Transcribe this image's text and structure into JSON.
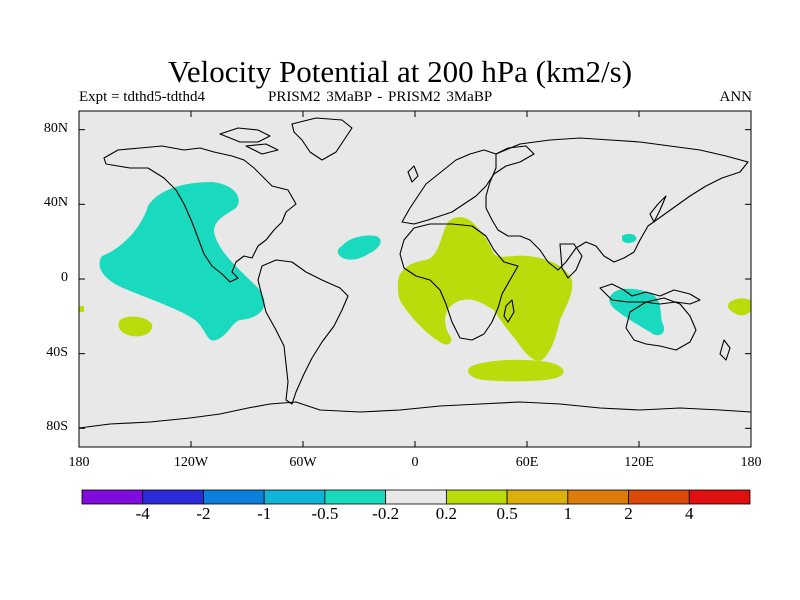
{
  "title": "Velocity Potential at 200 hPa (km2/s)",
  "expt": "Expt = tdthd5-tdthd4",
  "case": "PRISM2    3MaBP - PRISM2    3MaBP",
  "season": "ANN",
  "map": {
    "projection": "cylindrical equidistant",
    "lon_range": [
      -180,
      180
    ],
    "lat_range": [
      -90,
      90
    ],
    "ocean_background": "#e8e8e8",
    "coast_color": "#000000",
    "y_ticks": [
      {
        "label": "80N",
        "lat": 80
      },
      {
        "label": "40N",
        "lat": 40
      },
      {
        "label": "0",
        "lat": 0
      },
      {
        "label": "40S",
        "lat": -40
      },
      {
        "label": "80S",
        "lat": -80
      }
    ],
    "x_ticks": [
      {
        "label": "180",
        "lon": -180
      },
      {
        "label": "120W",
        "lon": -120
      },
      {
        "label": "60W",
        "lon": -60
      },
      {
        "label": "0",
        "lon": 0
      },
      {
        "label": "60E",
        "lon": 60
      },
      {
        "label": "120E",
        "lon": 120
      },
      {
        "label": "180",
        "lon": 180
      }
    ]
  },
  "colorbar": {
    "colors": [
      "#7f0bdc",
      "#2b2bd9",
      "#0a80dc",
      "#0fb4d6",
      "#19d9be",
      "#e8e8e8",
      "#b9dc0a",
      "#dcb00a",
      "#dc7d0a",
      "#dc4a0a",
      "#e01010"
    ],
    "labels": [
      "-4",
      "-2",
      "-1",
      "-0.5",
      "-0.2",
      "0.2",
      "0.5",
      "1",
      "2",
      "4"
    ]
  },
  "contours": {
    "negative_color": "#19d9be",
    "positive_color": "#b9dc0a"
  }
}
